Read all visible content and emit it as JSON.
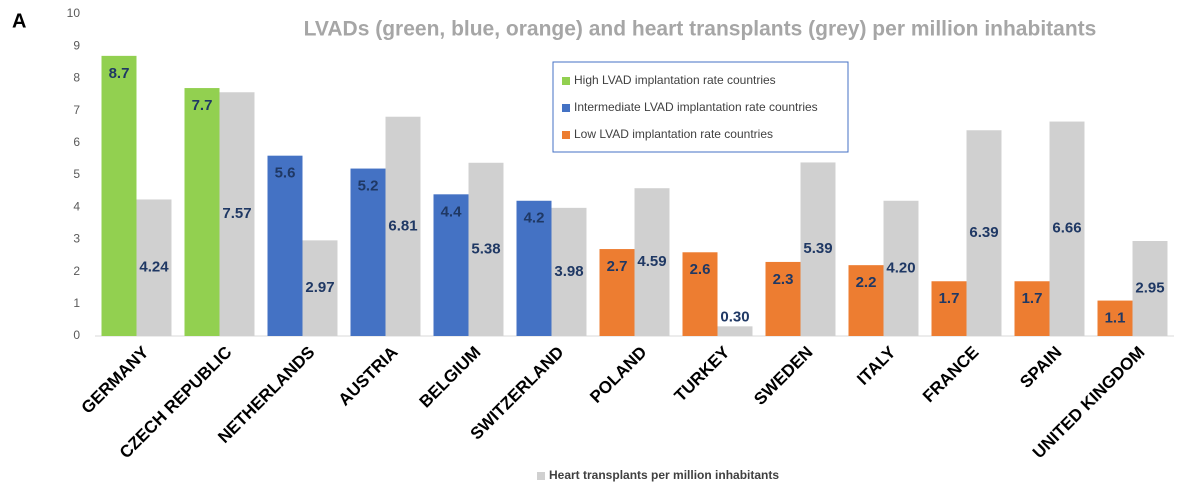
{
  "panel_label": "A",
  "chart_data": {
    "type": "bar",
    "title": "LVADs (green, blue, orange) and heart transplants (grey) per million inhabitants",
    "categories": [
      "GERMANY",
      "CZECH REPUBLIC",
      "NETHERLANDS",
      "AUSTRIA",
      "BELGIUM",
      "SWITZERLAND",
      "POLAND",
      "TURKEY",
      "SWEDEN",
      "ITALY",
      "FRANCE",
      "SPAIN",
      "UNITED KINGDOM"
    ],
    "series": [
      {
        "name": "High LVAD implantation rate countries",
        "color": "#92d050",
        "values": [
          8.7,
          7.7,
          null,
          null,
          null,
          null,
          null,
          null,
          null,
          null,
          null,
          null,
          null
        ]
      },
      {
        "name": "Intermediate LVAD implantation rate countries",
        "color": "#4472c4",
        "values": [
          null,
          null,
          5.6,
          5.2,
          4.4,
          4.2,
          null,
          null,
          null,
          null,
          null,
          null,
          null
        ]
      },
      {
        "name": "Low LVAD implantation rate countries",
        "color": "#ed7d31",
        "values": [
          null,
          null,
          null,
          null,
          null,
          null,
          2.7,
          2.6,
          2.3,
          2.2,
          1.7,
          1.7,
          1.1
        ]
      },
      {
        "name": "Heart transplants per million inhabitants",
        "color": "#d0d0d0",
        "values": [
          4.24,
          7.57,
          2.97,
          6.81,
          5.38,
          3.98,
          4.59,
          0.3,
          5.39,
          4.2,
          6.39,
          6.66,
          2.95
        ],
        "value_labels": [
          "4.24",
          "7.57",
          "2.97",
          "6.81",
          "5.38",
          "3.98",
          "4.59",
          "0.30",
          "5.39",
          "4.20",
          "6.39",
          "6.66",
          "2.95"
        ]
      }
    ],
    "ylim": [
      0,
      10
    ],
    "yticks": [
      0,
      1,
      2,
      3,
      4,
      5,
      6,
      7,
      8,
      9,
      10
    ],
    "grid": false
  }
}
